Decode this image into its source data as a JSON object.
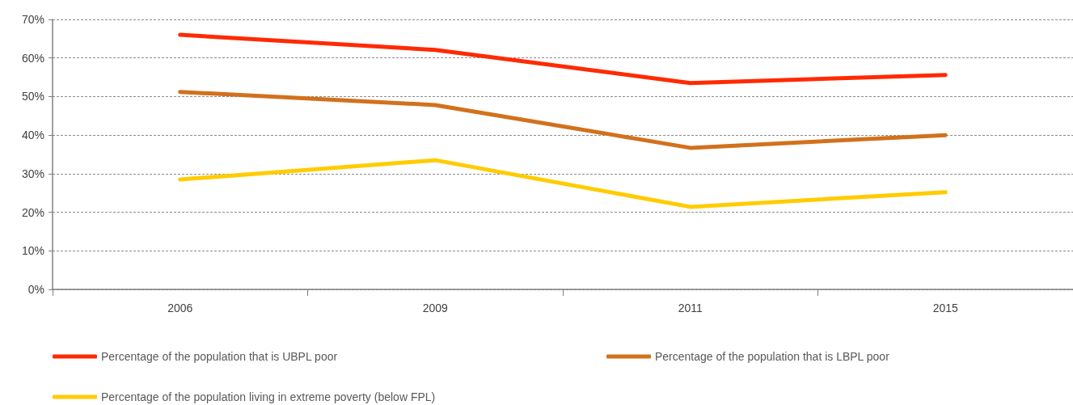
{
  "chart_data": {
    "type": "line",
    "categories": [
      "2006",
      "2009",
      "2011",
      "2015"
    ],
    "series": [
      {
        "name": "Percentage of the population that is UBPL poor",
        "color": "#ff2a00",
        "values": [
          66.0,
          62.1,
          53.5,
          55.6
        ]
      },
      {
        "name": "Percentage of the population that is LBPL poor",
        "color": "#d2711c",
        "values": [
          51.2,
          47.8,
          36.7,
          40.0
        ]
      },
      {
        "name": "Percentage of the population living in extreme poverty (below FPL)",
        "color": "#ffcc00",
        "values": [
          28.5,
          33.5,
          21.4,
          25.2
        ]
      }
    ],
    "ylim": [
      0,
      70
    ],
    "yticks": [
      {
        "value": 0,
        "label": "0%"
      },
      {
        "value": 10,
        "label": "10%"
      },
      {
        "value": 20,
        "label": "20%"
      },
      {
        "value": 30,
        "label": "30%"
      },
      {
        "value": 40,
        "label": "40%"
      },
      {
        "value": 50,
        "label": "50%"
      },
      {
        "value": 60,
        "label": "60%"
      },
      {
        "value": 70,
        "label": "70%"
      }
    ],
    "grid": "y",
    "legend": "bottom",
    "marker": "none",
    "line_style": "solid"
  }
}
